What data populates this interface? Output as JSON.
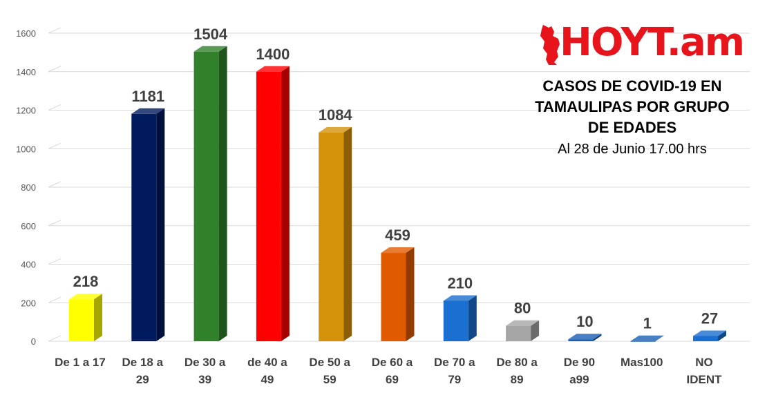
{
  "logo_text": "HOYT.am",
  "chart_data": {
    "type": "bar",
    "title": "CASOS DE COVID-19 EN TAMAULIPAS POR GRUPO DE EDADES",
    "subtitle": "Al 28 de Junio 17.00 hrs",
    "xlabel": "",
    "ylabel": "",
    "ylim": [
      0,
      1600
    ],
    "yticks": [
      0,
      200,
      400,
      600,
      800,
      1000,
      1200,
      1400,
      1600
    ],
    "grid": true,
    "categories": [
      [
        "De 1 a 17"
      ],
      [
        "De 18 a",
        "29"
      ],
      [
        "De 30 a",
        "39"
      ],
      [
        "de 40 a",
        "49"
      ],
      [
        "De 50 a",
        "59"
      ],
      [
        "De 60 a",
        "69"
      ],
      [
        "De 70 a",
        "79"
      ],
      [
        "De 80 a",
        "89"
      ],
      [
        "De 90",
        "a99"
      ],
      [
        "Mas100"
      ],
      [
        "NO",
        "IDENT"
      ]
    ],
    "values": [
      218,
      1181,
      1504,
      1400,
      1084,
      459,
      210,
      80,
      10,
      1,
      27
    ],
    "colors": [
      "#ffff00",
      "#001a5e",
      "#31812b",
      "#ff0000",
      "#d4920a",
      "#e05a00",
      "#1a6fd0",
      "#a6a6a6",
      "#1a5fb4",
      "#1a5fb4",
      "#1a6fd0"
    ]
  }
}
